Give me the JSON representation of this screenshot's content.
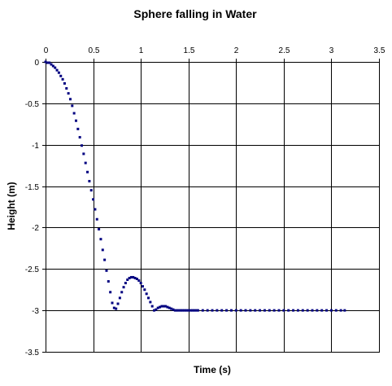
{
  "chart_data": {
    "type": "scatter",
    "title": "Sphere falling in Water",
    "xlabel": "Time (s)",
    "ylabel": "Height (m)",
    "xlim": [
      0,
      3.5
    ],
    "ylim": [
      -3.5,
      0
    ],
    "x_axis_position": "top",
    "x_ticks": [
      0,
      0.5,
      1,
      1.5,
      2,
      2.5,
      3,
      3.5
    ],
    "x_tick_labels": [
      "0",
      "0.5",
      "1",
      "1.5",
      "2",
      "2.5",
      "3",
      "3.5"
    ],
    "y_ticks": [
      0,
      -0.5,
      -1,
      -1.5,
      -2,
      -2.5,
      -3,
      -3.5
    ],
    "y_tick_labels": [
      "0",
      "-0.5",
      "-1",
      "-1.5",
      "-2",
      "-2.5",
      "-3",
      "-3.5"
    ],
    "grid": true,
    "marker_color": "#000080",
    "series": [
      {
        "x": [
          0.0,
          0.02,
          0.04,
          0.06,
          0.08,
          0.1,
          0.12,
          0.14,
          0.16,
          0.18,
          0.2,
          0.22,
          0.24,
          0.26,
          0.28,
          0.3,
          0.32,
          0.34,
          0.36,
          0.38,
          0.4,
          0.42,
          0.44,
          0.46,
          0.48,
          0.5,
          0.52,
          0.54,
          0.56,
          0.58,
          0.6,
          0.62,
          0.64,
          0.66,
          0.68,
          0.7,
          0.72,
          0.74,
          0.76,
          0.78,
          0.8,
          0.82,
          0.84,
          0.86,
          0.88,
          0.9,
          0.92,
          0.94,
          0.96,
          0.98,
          1.0,
          1.02,
          1.04,
          1.06,
          1.08,
          1.1,
          1.12,
          1.14,
          1.16,
          1.18,
          1.2,
          1.22,
          1.24,
          1.26,
          1.28,
          1.3,
          1.32,
          1.34,
          1.36,
          1.38,
          1.4,
          1.42,
          1.44,
          1.46,
          1.48,
          1.5,
          1.52,
          1.54,
          1.56,
          1.58,
          1.6,
          1.65,
          1.7,
          1.75,
          1.8,
          1.85,
          1.9,
          1.95,
          2.0,
          2.05,
          2.1,
          2.15,
          2.2,
          2.25,
          2.3,
          2.35,
          2.4,
          2.45,
          2.5,
          2.55,
          2.6,
          2.65,
          2.7,
          2.75,
          2.8,
          2.85,
          2.9,
          2.95,
          3.0,
          3.05,
          3.1,
          3.14
        ],
        "y": [
          0.0,
          -0.01,
          -0.01,
          -0.03,
          -0.05,
          -0.07,
          -0.1,
          -0.13,
          -0.17,
          -0.21,
          -0.26,
          -0.32,
          -0.38,
          -0.45,
          -0.53,
          -0.62,
          -0.71,
          -0.81,
          -0.91,
          -1.01,
          -1.11,
          -1.22,
          -1.33,
          -1.44,
          -1.55,
          -1.66,
          -1.78,
          -1.9,
          -2.02,
          -2.14,
          -2.27,
          -2.39,
          -2.52,
          -2.65,
          -2.78,
          -2.91,
          -2.97,
          -2.98,
          -2.92,
          -2.85,
          -2.78,
          -2.72,
          -2.67,
          -2.63,
          -2.61,
          -2.6,
          -2.6,
          -2.61,
          -2.62,
          -2.64,
          -2.67,
          -2.71,
          -2.75,
          -2.8,
          -2.85,
          -2.9,
          -2.95,
          -3.0,
          -2.99,
          -2.97,
          -2.96,
          -2.95,
          -2.95,
          -2.95,
          -2.96,
          -2.97,
          -2.98,
          -2.99,
          -3.0,
          -3.0,
          -3.0,
          -3.0,
          -3.0,
          -3.0,
          -3.0,
          -3.0,
          -3.0,
          -3.0,
          -3.0,
          -3.0,
          -3.0,
          -3.0,
          -3.0,
          -3.0,
          -3.0,
          -3.0,
          -3.0,
          -3.0,
          -3.0,
          -3.0,
          -3.0,
          -3.0,
          -3.0,
          -3.0,
          -3.0,
          -3.0,
          -3.0,
          -3.0,
          -3.0,
          -3.0,
          -3.0,
          -3.0,
          -3.0,
          -3.0,
          -3.0,
          -3.0,
          -3.0,
          -3.0,
          -3.0,
          -3.0,
          -3.0,
          -3.0
        ]
      }
    ]
  }
}
